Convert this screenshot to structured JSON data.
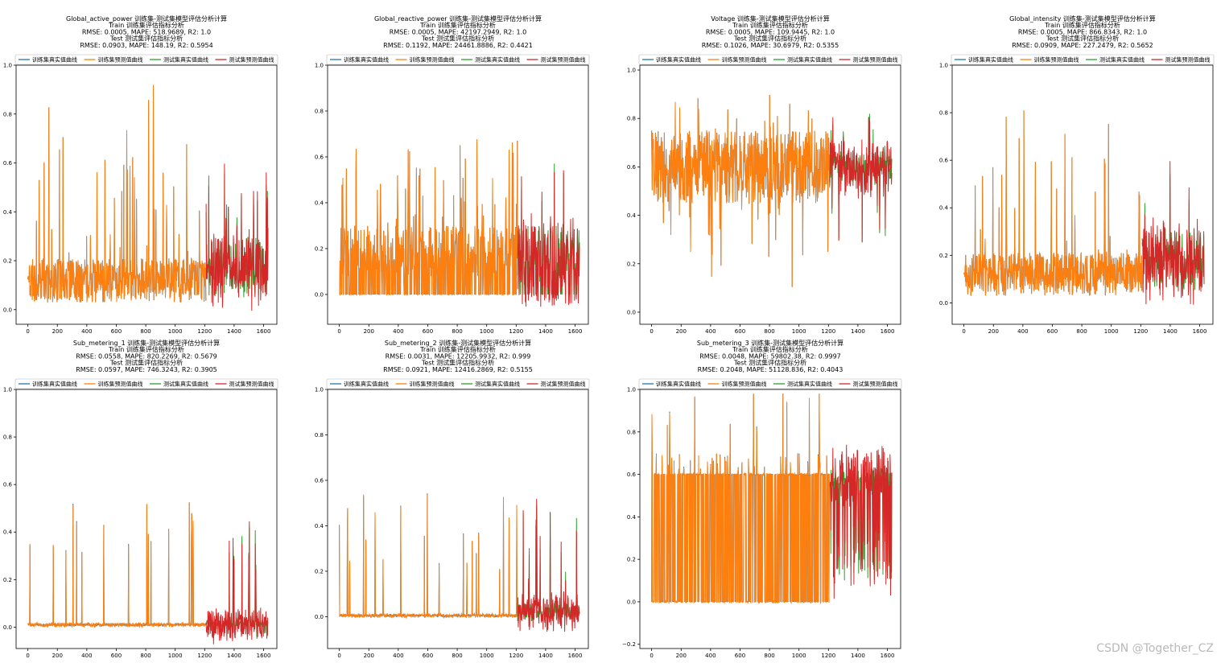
{
  "figure": {
    "watermark": "CSDN @Together_CZ"
  },
  "colors": {
    "train_true": "#1f77b4",
    "train_pred": "#ff7f0e",
    "test_true": "#2ca02c",
    "test_pred": "#d62728",
    "frame": "#000000"
  },
  "legend_labels": [
    "训练集真实值曲线",
    "训练集预测值曲线",
    "测试集真实值曲线",
    "测试集预测值曲线"
  ],
  "chart_data": [
    {
      "type": "line",
      "seed": 11,
      "profile": "active",
      "title_lines": [
        "Global_active_power 训练集-测试集模型评估分析计算",
        "Train 训练集评估指标分析",
        "RMSE: 0.0005, MAPE: 518.9689, R2: 1.0",
        "Test 测试集评估指标分析",
        "RMSE: 0.0903, MAPE: 148.19, R2: 0.5954"
      ],
      "xlim": [
        -80,
        1690
      ],
      "ylim": [
        -0.06,
        1.0
      ],
      "xticks": [
        0,
        200,
        400,
        600,
        800,
        1000,
        1200,
        1400,
        1600
      ],
      "yticks": [
        0.0,
        0.2,
        0.4,
        0.6,
        0.8,
        1.0
      ],
      "ytick_labels": [
        "0.0",
        "0.2",
        "0.4",
        "0.6",
        "0.8",
        "1.0"
      ],
      "train_range": [
        0,
        1210
      ],
      "test_range": [
        1210,
        1630
      ],
      "legend": "top"
    },
    {
      "type": "line",
      "seed": 23,
      "profile": "reactive",
      "title_lines": [
        "Global_reactive_power 训练集-测试集模型评估分析计算",
        "Train 训练集评估指标分析",
        "RMSE: 0.0005, MAPE: 42197.2949, R2: 1.0",
        "Test 测试集评估指标分析",
        "RMSE: 0.1192, MAPE: 24461.8886, R2: 0.4421"
      ],
      "xlim": [
        -80,
        1690
      ],
      "ylim": [
        -0.13,
        1.0
      ],
      "xticks": [
        0,
        200,
        400,
        600,
        800,
        1000,
        1200,
        1400,
        1600
      ],
      "yticks": [
        0.0,
        0.2,
        0.4,
        0.6,
        0.8,
        1.0
      ],
      "ytick_labels": [
        "0.0",
        "0.2",
        "0.4",
        "0.6",
        "0.8",
        "1.0"
      ],
      "train_range": [
        0,
        1210
      ],
      "test_range": [
        1210,
        1630
      ],
      "legend": "top"
    },
    {
      "type": "line",
      "seed": 37,
      "profile": "voltage",
      "title_lines": [
        "Voltage 训练集-测试集模型评估分析计算",
        "Train 训练集评估指标分析",
        "RMSE: 0.0005, MAPE: 109.9445, R2: 1.0",
        "Test 测试集评估指标分析",
        "RMSE: 0.1026, MAPE: 30.6979, R2: 0.5355"
      ],
      "xlim": [
        -80,
        1690
      ],
      "ylim": [
        -0.05,
        1.02
      ],
      "xticks": [
        0,
        200,
        400,
        600,
        800,
        1000,
        1200,
        1400,
        1600
      ],
      "yticks": [
        0.0,
        0.2,
        0.4,
        0.6,
        0.8,
        1.0
      ],
      "ytick_labels": [
        "0.0",
        "0.2",
        "0.4",
        "0.6",
        "0.8",
        "1.0"
      ],
      "train_range": [
        0,
        1210
      ],
      "test_range": [
        1210,
        1630
      ],
      "legend": "top"
    },
    {
      "type": "line",
      "seed": 41,
      "profile": "intensity",
      "title_lines": [
        "Global_intensity 训练集-测试集模型评估分析计算",
        "Train 训练集评估指标分析",
        "RMSE: 0.0005, MAPE: 866.8343, R2: 1.0",
        "Test 测试集评估指标分析",
        "RMSE: 0.0909, MAPE: 227.2479, R2: 0.5652"
      ],
      "xlim": [
        -80,
        1690
      ],
      "ylim": [
        -0.09,
        1.0
      ],
      "xticks": [
        0,
        200,
        400,
        600,
        800,
        1000,
        1200,
        1400,
        1600
      ],
      "yticks": [
        0.0,
        0.2,
        0.4,
        0.6,
        0.8,
        1.0
      ],
      "ytick_labels": [
        "0.0",
        "0.2",
        "0.4",
        "0.6",
        "0.8",
        "1.0"
      ],
      "train_range": [
        0,
        1210
      ],
      "test_range": [
        1210,
        1630
      ],
      "legend": "top"
    },
    {
      "type": "line",
      "seed": 53,
      "profile": "sub1",
      "title_lines": [
        "Sub_metering_1 训练集-测试集模型评估分析计算",
        "Train 训练集评估指标分析",
        "RMSE: 0.0558, MAPE: 820.2269, R2: 0.5679",
        "Test 测试集评估指标分析",
        "RMSE: 0.0597, MAPE: 746.3243, R2: 0.3905"
      ],
      "xlim": [
        -80,
        1690
      ],
      "ylim": [
        -0.09,
        1.0
      ],
      "xticks": [
        0,
        200,
        400,
        600,
        800,
        1000,
        1200,
        1400,
        1600
      ],
      "yticks": [
        0.0,
        0.2,
        0.4,
        0.6,
        0.8,
        1.0
      ],
      "ytick_labels": [
        "0.0",
        "0.2",
        "0.4",
        "0.6",
        "0.8",
        "1.0"
      ],
      "train_range": [
        0,
        1210
      ],
      "test_range": [
        1210,
        1630
      ],
      "legend": "top"
    },
    {
      "type": "line",
      "seed": 67,
      "profile": "sub2",
      "title_lines": [
        "Sub_metering_2 训练集-测试集模型评估分析计算",
        "Train 训练集评估指标分析",
        "RMSE: 0.0031, MAPE: 12205.9932, R2: 0.999",
        "Test 测试集评估指标分析",
        "RMSE: 0.0921, MAPE: 12416.2869, R2: 0.5155"
      ],
      "xlim": [
        -80,
        1690
      ],
      "ylim": [
        -0.14,
        1.0
      ],
      "xticks": [
        0,
        200,
        400,
        600,
        800,
        1000,
        1200,
        1400,
        1600
      ],
      "yticks": [
        0.0,
        0.2,
        0.4,
        0.6,
        0.8,
        1.0
      ],
      "ytick_labels": [
        "0.0",
        "0.2",
        "0.4",
        "0.6",
        "0.8",
        "1.0"
      ],
      "train_range": [
        0,
        1210
      ],
      "test_range": [
        1210,
        1630
      ],
      "legend": "top"
    },
    {
      "type": "line",
      "seed": 79,
      "profile": "sub3",
      "title_lines": [
        "Sub_metering_3 训练集-测试集模型评估分析计算",
        "Train 训练集评估指标分析",
        "RMSE: 0.0048, MAPE: 59802.38, R2: 0.9997",
        "Test 测试集评估指标分析",
        "RMSE: 0.2048, MAPE: 51128.836, R2: 0.4043"
      ],
      "xlim": [
        -80,
        1690
      ],
      "ylim": [
        -0.22,
        1.0
      ],
      "xticks": [
        0,
        200,
        400,
        600,
        800,
        1000,
        1200,
        1400,
        1600
      ],
      "yticks": [
        -0.2,
        0.0,
        0.2,
        0.4,
        0.6,
        0.8,
        1.0
      ],
      "ytick_labels": [
        "−0.2",
        "0.0",
        "0.2",
        "0.4",
        "0.6",
        "0.8",
        "1.0"
      ],
      "train_range": [
        0,
        1210
      ],
      "test_range": [
        1210,
        1630
      ],
      "legend": "top"
    }
  ]
}
